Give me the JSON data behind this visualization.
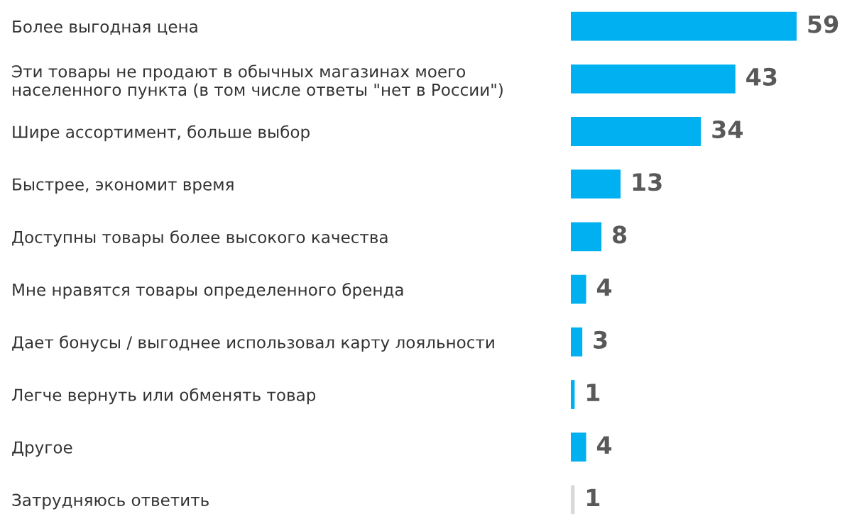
{
  "chart_data": {
    "type": "bar",
    "orientation": "horizontal",
    "data_labels": true,
    "categories": [
      "Более выгодная цена",
      "Эти товары не продают в обычных магазинах моего\nнаселенного пункта (в том числе ответы \"нет в России\")",
      "Шире ассортимент, больше выбор",
      "Быстрее, экономит время",
      "Доступны товары более высокого качества",
      "Мне нравятся товары определенного бренда",
      "Дает бонусы / выгоднее использовал карту лояльности",
      "Легче вернуть или обменять товар",
      "Другое",
      "Затрудняюсь ответить"
    ],
    "values": [
      59,
      43,
      34,
      13,
      8,
      4,
      3,
      1,
      4,
      1
    ],
    "colors": [
      "#00b0f0",
      "#00b0f0",
      "#00b0f0",
      "#00b0f0",
      "#00b0f0",
      "#00b0f0",
      "#00b0f0",
      "#00b0f0",
      "#00b0f0",
      "#d9d9d9"
    ]
  }
}
